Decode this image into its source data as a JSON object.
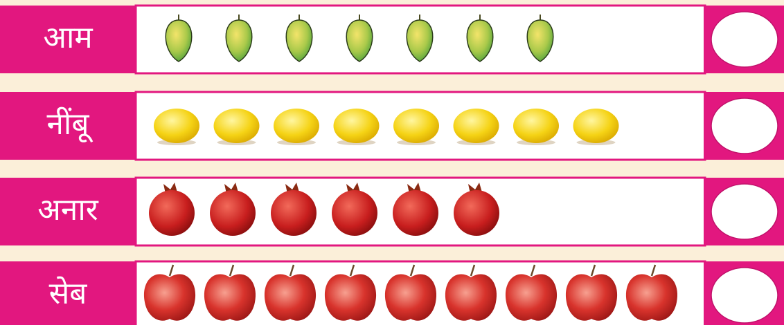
{
  "rows": [
    {
      "label": "आम",
      "count": 7
    },
    {
      "label": "नींबू",
      "count": 8
    },
    {
      "label": "अनार",
      "count": 6
    },
    {
      "label": "सेब",
      "count": 9
    }
  ]
}
